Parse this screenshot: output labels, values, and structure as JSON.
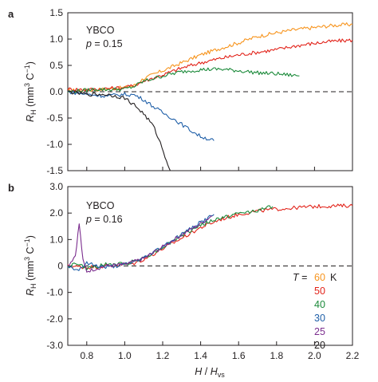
{
  "figure": {
    "x_axis_label": {
      "main": "H",
      "separator": " / ",
      "denominator": "H",
      "denominator_subscript": "vs"
    },
    "y_axis_label": {
      "symbol": "R",
      "subscript": "H",
      "unit_open": " (mm",
      "unit_power": "3",
      "unit_mid": " C",
      "unit_neg_power": "−1",
      "unit_close": ")"
    },
    "legend": {
      "prefix_symbol": "T",
      "prefix_equals": " =",
      "unit": "K",
      "entries": [
        {
          "label": "60",
          "color": "#f7941d"
        },
        {
          "label": "50",
          "color": "#e2231a"
        },
        {
          "label": "40",
          "color": "#1b8a3a"
        },
        {
          "label": "30",
          "color": "#1f5fa8"
        },
        {
          "label": "25",
          "color": "#7b2d8e"
        },
        {
          "label": "20",
          "color": "#231f20"
        }
      ]
    }
  },
  "chart_data": [
    {
      "type": "line",
      "panel": "a",
      "annotation": {
        "material": "YBCO",
        "doping_symbol": "p",
        "doping_value": " = 0.15"
      },
      "xlim": [
        0.7,
        2.2
      ],
      "ylim": [
        -1.5,
        1.5
      ],
      "x_ticks": [
        "0.8",
        "1.0",
        "1.2",
        "1.4",
        "1.6",
        "1.8",
        "2.0",
        "2.2"
      ],
      "y_ticks": [
        "1.5",
        "1.0",
        "0.5",
        "0.0",
        "-0.5",
        "-1.0",
        "-1.5"
      ],
      "reference_line_y": 0,
      "series": [
        {
          "name": "60",
          "color": "#f7941d",
          "points": [
            [
              0.7,
              0.02
            ],
            [
              0.8,
              0.03
            ],
            [
              0.9,
              0.05
            ],
            [
              1.0,
              0.08
            ],
            [
              1.05,
              0.12
            ],
            [
              1.1,
              0.25
            ],
            [
              1.2,
              0.4
            ],
            [
              1.3,
              0.55
            ],
            [
              1.4,
              0.7
            ],
            [
              1.5,
              0.82
            ],
            [
              1.6,
              0.93
            ],
            [
              1.7,
              1.05
            ],
            [
              1.8,
              1.12
            ],
            [
              1.9,
              1.18
            ],
            [
              2.0,
              1.22
            ],
            [
              2.1,
              1.26
            ],
            [
              2.2,
              1.28
            ]
          ]
        },
        {
          "name": "50",
          "color": "#e2231a",
          "points": [
            [
              0.7,
              0.05
            ],
            [
              0.8,
              0.04
            ],
            [
              0.9,
              0.06
            ],
            [
              1.0,
              0.08
            ],
            [
              1.05,
              0.12
            ],
            [
              1.1,
              0.2
            ],
            [
              1.2,
              0.32
            ],
            [
              1.3,
              0.45
            ],
            [
              1.4,
              0.55
            ],
            [
              1.5,
              0.63
            ],
            [
              1.6,
              0.7
            ],
            [
              1.7,
              0.75
            ],
            [
              1.8,
              0.8
            ],
            [
              1.9,
              0.87
            ],
            [
              2.0,
              0.92
            ],
            [
              2.1,
              0.96
            ],
            [
              2.2,
              0.98
            ]
          ]
        },
        {
          "name": "40",
          "color": "#1b8a3a",
          "points": [
            [
              0.7,
              0.0
            ],
            [
              0.8,
              0.03
            ],
            [
              0.85,
              0.05
            ],
            [
              0.9,
              0.04
            ],
            [
              1.0,
              0.05
            ],
            [
              1.05,
              0.1
            ],
            [
              1.1,
              0.2
            ],
            [
              1.2,
              0.3
            ],
            [
              1.3,
              0.38
            ],
            [
              1.4,
              0.42
            ],
            [
              1.5,
              0.43
            ],
            [
              1.6,
              0.4
            ],
            [
              1.7,
              0.36
            ],
            [
              1.8,
              0.34
            ],
            [
              1.92,
              0.3
            ]
          ]
        },
        {
          "name": "30",
          "color": "#1f5fa8",
          "points": [
            [
              0.7,
              0.0
            ],
            [
              0.8,
              -0.05
            ],
            [
              0.9,
              -0.08
            ],
            [
              1.0,
              -0.05
            ],
            [
              1.05,
              -0.06
            ],
            [
              1.1,
              -0.15
            ],
            [
              1.15,
              -0.28
            ],
            [
              1.2,
              -0.4
            ],
            [
              1.25,
              -0.5
            ],
            [
              1.3,
              -0.62
            ],
            [
              1.35,
              -0.74
            ],
            [
              1.4,
              -0.85
            ],
            [
              1.47,
              -0.93
            ]
          ]
        },
        {
          "name": "20",
          "color": "#231f20",
          "points": [
            [
              0.7,
              0.0
            ],
            [
              0.8,
              -0.05
            ],
            [
              0.9,
              -0.05
            ],
            [
              0.95,
              -0.08
            ],
            [
              1.0,
              -0.12
            ],
            [
              1.05,
              -0.25
            ],
            [
              1.1,
              -0.42
            ],
            [
              1.15,
              -0.65
            ],
            [
              1.18,
              -0.9
            ],
            [
              1.22,
              -1.3
            ],
            [
              1.24,
              -1.5
            ]
          ]
        }
      ]
    },
    {
      "type": "line",
      "panel": "b",
      "annotation": {
        "material": "YBCO",
        "doping_symbol": "p",
        "doping_value": " = 0.16"
      },
      "xlim": [
        0.7,
        2.2
      ],
      "ylim": [
        -3.0,
        3.0
      ],
      "x_ticks": [
        "0.8",
        "1.0",
        "1.2",
        "1.4",
        "1.6",
        "1.8",
        "2.0",
        "2.2"
      ],
      "y_ticks": [
        "3.0",
        "2.0",
        "1.0",
        "0",
        "-1.0",
        "-2.0",
        "-3.0"
      ],
      "x_tick_values": [
        0.8,
        1.0,
        1.2,
        1.4,
        1.6,
        1.8,
        2.0,
        2.2
      ],
      "y_tick_values": [
        3,
        2,
        1,
        0,
        -1,
        -2,
        -3
      ],
      "reference_line_y": 0,
      "series": [
        {
          "name": "50",
          "color": "#e2231a",
          "points": [
            [
              0.7,
              0.0
            ],
            [
              0.8,
              -0.05
            ],
            [
              0.9,
              0.0
            ],
            [
              1.0,
              0.05
            ],
            [
              1.05,
              0.1
            ],
            [
              1.1,
              0.25
            ],
            [
              1.2,
              0.65
            ],
            [
              1.3,
              1.05
            ],
            [
              1.4,
              1.45
            ],
            [
              1.5,
              1.75
            ],
            [
              1.6,
              1.95
            ],
            [
              1.7,
              2.08
            ],
            [
              1.8,
              2.15
            ],
            [
              1.9,
              2.2
            ],
            [
              2.0,
              2.25
            ],
            [
              2.1,
              2.27
            ],
            [
              2.2,
              2.28
            ]
          ]
        },
        {
          "name": "40",
          "color": "#1b8a3a",
          "points": [
            [
              0.7,
              0.0
            ],
            [
              0.75,
              0.1
            ],
            [
              0.8,
              -0.1
            ],
            [
              0.9,
              0.05
            ],
            [
              1.0,
              0.08
            ],
            [
              1.1,
              0.3
            ],
            [
              1.2,
              0.7
            ],
            [
              1.3,
              1.15
            ],
            [
              1.4,
              1.55
            ],
            [
              1.5,
              1.8
            ],
            [
              1.6,
              1.98
            ],
            [
              1.7,
              2.1
            ],
            [
              1.78,
              2.25
            ]
          ]
        },
        {
          "name": "30",
          "color": "#1f5fa8",
          "points": [
            [
              0.7,
              0.0
            ],
            [
              0.75,
              -0.15
            ],
            [
              0.8,
              0.1
            ],
            [
              0.9,
              -0.05
            ],
            [
              1.0,
              0.05
            ],
            [
              1.1,
              0.3
            ],
            [
              1.2,
              0.75
            ],
            [
              1.3,
              1.2
            ],
            [
              1.4,
              1.65
            ],
            [
              1.47,
              1.95
            ]
          ]
        },
        {
          "name": "25",
          "color": "#7b2d8e",
          "points": [
            [
              0.7,
              0.0
            ],
            [
              0.74,
              0.4
            ],
            [
              0.76,
              1.6
            ],
            [
              0.78,
              0.2
            ],
            [
              0.8,
              -0.2
            ],
            [
              0.9,
              0.0
            ],
            [
              1.0,
              0.05
            ],
            [
              1.1,
              0.28
            ],
            [
              1.2,
              0.72
            ],
            [
              1.3,
              1.18
            ],
            [
              1.4,
              1.6
            ],
            [
              1.46,
              1.9
            ]
          ]
        }
      ]
    }
  ]
}
